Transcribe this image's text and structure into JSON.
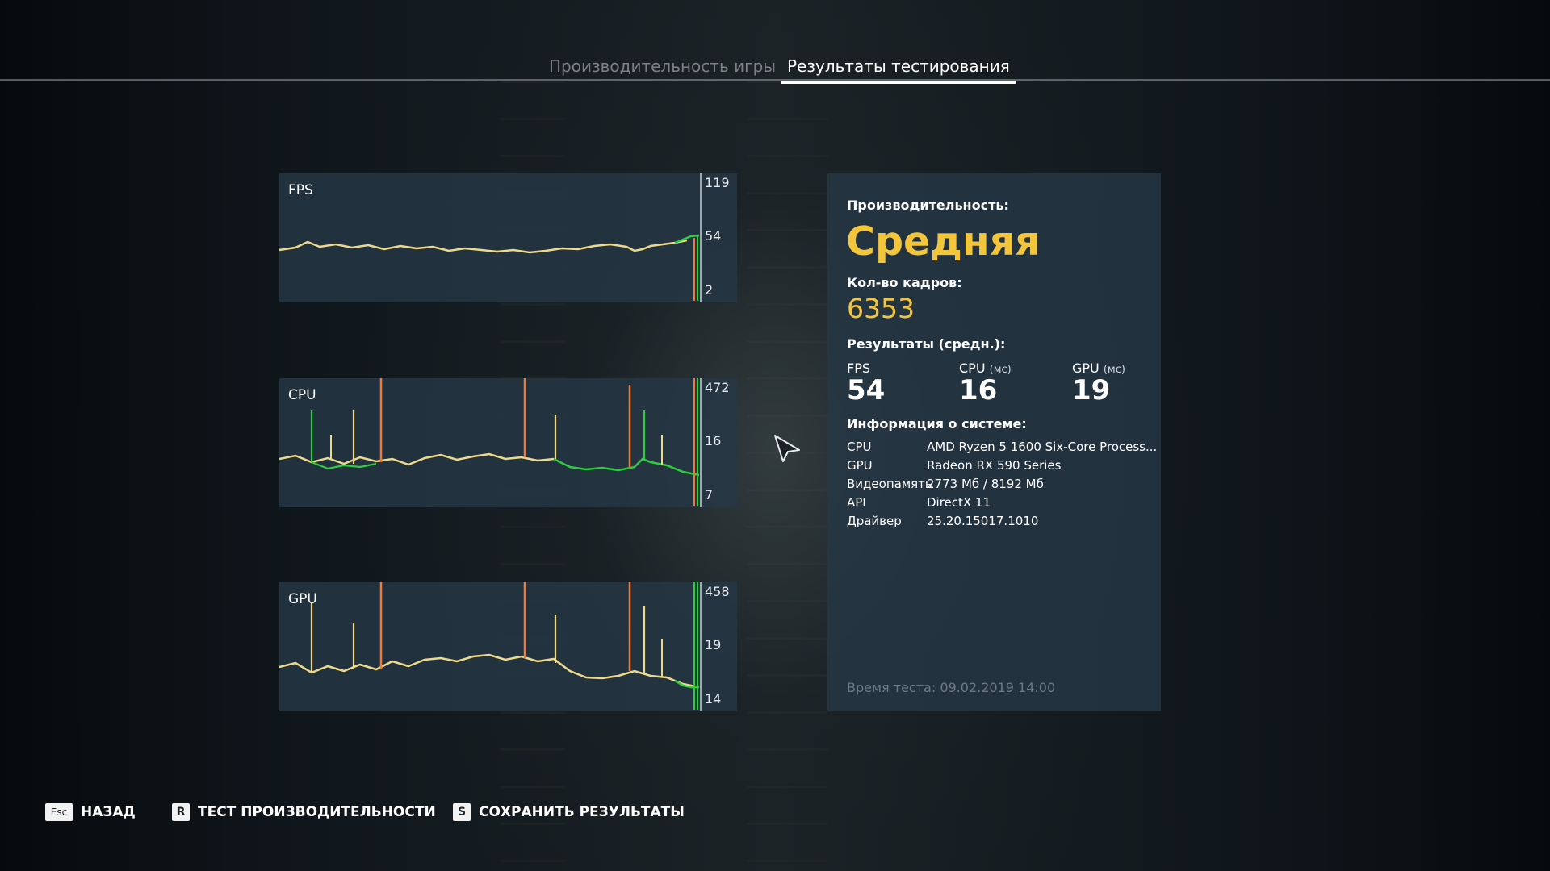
{
  "tabs": [
    {
      "label": "Производительность игры",
      "active": false
    },
    {
      "label": "Результаты тестирования",
      "active": true
    }
  ],
  "charts": [
    {
      "title": "FPS",
      "ticks": [
        "119",
        "54",
        "2"
      ]
    },
    {
      "title": "CPU",
      "ticks": [
        "472",
        "16",
        "7"
      ]
    },
    {
      "title": "GPU",
      "ticks": [
        "458",
        "19",
        "14"
      ]
    }
  ],
  "info": {
    "performance_label": "Производительность:",
    "performance_value": "Средняя",
    "frames_label": "Кол-во кадров:",
    "frames_value": "6353",
    "averages_label": "Результаты (средн.):",
    "stats": [
      {
        "name": "FPS",
        "unit": "",
        "value": "54"
      },
      {
        "name": "CPU",
        "unit": "(мс)",
        "value": "16"
      },
      {
        "name": "GPU",
        "unit": "(мс)",
        "value": "19"
      }
    ],
    "system_label": "Информация о системе:",
    "system": [
      {
        "key": "CPU",
        "value": "AMD Ryzen 5 1600 Six-Core Process..."
      },
      {
        "key": "GPU",
        "value": "Radeon RX 590 Series"
      },
      {
        "key": "Видеопамять",
        "value": "2773 Мб / 8192 Мб"
      },
      {
        "key": "API",
        "value": "DirectX 11"
      },
      {
        "key": "Драйвер",
        "value": "25.20.15017.1010"
      }
    ],
    "test_time": "Время теста: 09.02.2019 14:00"
  },
  "footer": [
    {
      "key": "Esc",
      "label": "НАЗАД"
    },
    {
      "key": "R",
      "label": "ТЕСТ ПРОИЗВОДИТЕЛЬНОСТИ"
    },
    {
      "key": "S",
      "label": "СОХРАНИТЬ РЕЗУЛЬТАТЫ"
    }
  ],
  "colors": {
    "accent_yellow": "#f3c53a",
    "line_yellow": "#ecd98a",
    "line_green": "#2ecc40",
    "spike_orange": "#f07a3a",
    "panel_bg": "#26374a"
  }
}
